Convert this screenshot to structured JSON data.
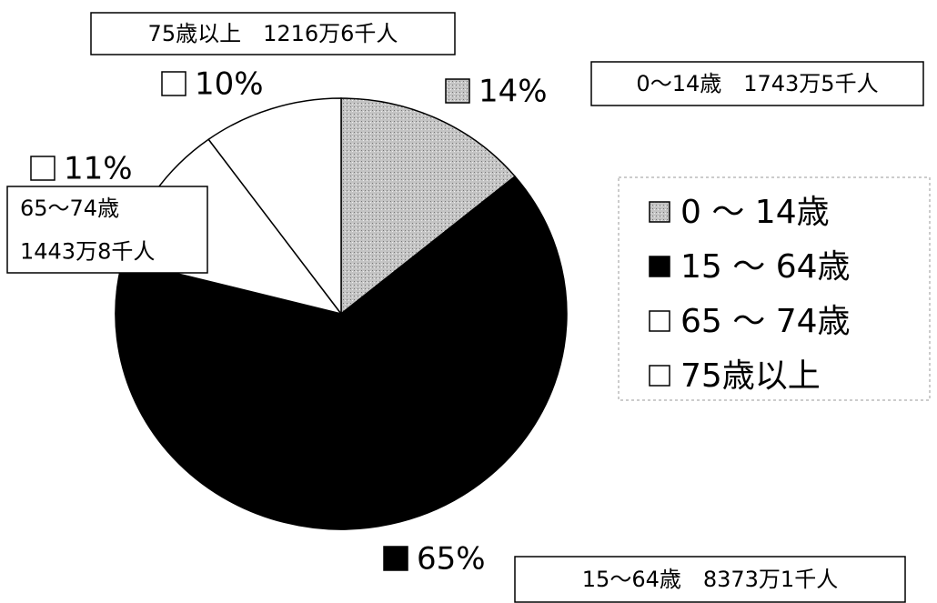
{
  "chart_data": {
    "type": "pie",
    "categories": [
      "0 ～ 14歳",
      "15 ～ 64歳",
      "65 ～ 74歳",
      "75歳以上"
    ],
    "values": [
      14,
      65,
      11,
      10
    ],
    "value_labels": [
      "14%",
      "65%",
      "11%",
      "10%"
    ],
    "colors": [
      "#c4c4c4",
      "#000000",
      "#ffffff",
      "#ffffff"
    ],
    "annotations": [
      [
        "0～14歳　1743万5千人"
      ],
      [
        "15～64歳　8373万1千人"
      ],
      [
        "65～74歳",
        "1443万8千人"
      ],
      [
        "75歳以上　1216万6千人"
      ]
    ],
    "legend": "right"
  }
}
